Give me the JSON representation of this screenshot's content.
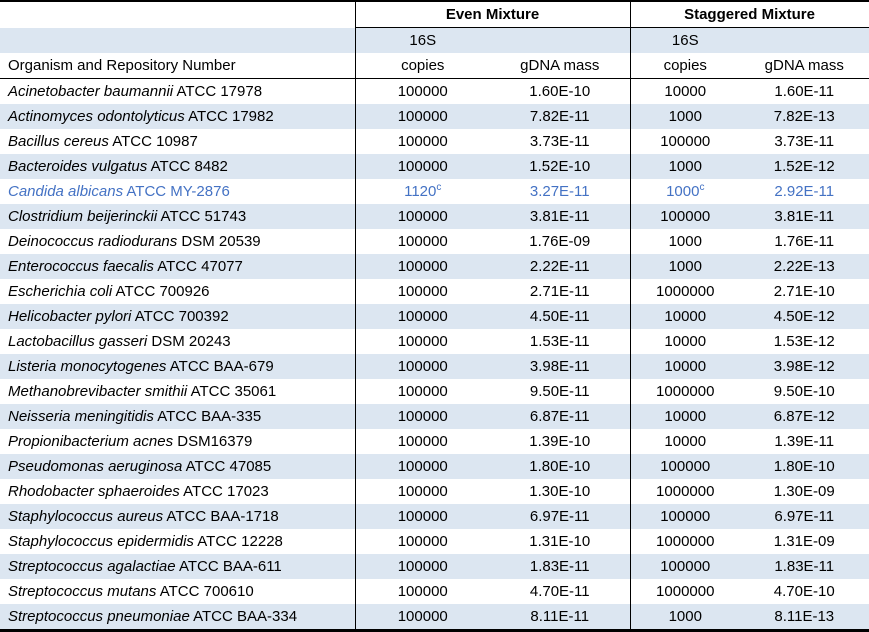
{
  "table": {
    "group_headers": {
      "even": "Even Mixture",
      "staggered": "Staggered Mixture"
    },
    "col_headers": {
      "organism": "Organism and Repository Number",
      "line1": "16S",
      "copies": "copies",
      "gdna": "gDNA mass"
    },
    "colors": {
      "band": "#dce6f1",
      "highlight_text": "#4472c4",
      "border": "#000000"
    },
    "rows": [
      {
        "organism": "Acinetobacter baumannii",
        "repository": "ATCC 17978",
        "even_copies": "100000",
        "even_gdna": "1.60E-10",
        "stag_copies": "10000",
        "stag_gdna": "1.60E-11"
      },
      {
        "organism": "Actinomyces odontolyticus",
        "repository": "ATCC 17982",
        "even_copies": "100000",
        "even_gdna": "7.82E-11",
        "stag_copies": "1000",
        "stag_gdna": "7.82E-13"
      },
      {
        "organism": "Bacillus cereus",
        "repository": "ATCC 10987",
        "even_copies": "100000",
        "even_gdna": "3.73E-11",
        "stag_copies": "100000",
        "stag_gdna": "3.73E-11"
      },
      {
        "organism": "Bacteroides vulgatus",
        "repository": "ATCC 8482",
        "even_copies": "100000",
        "even_gdna": "1.52E-10",
        "stag_copies": "1000",
        "stag_gdna": "1.52E-12"
      },
      {
        "organism": "Candida albicans",
        "repository": "ATCC MY-2876",
        "even_copies": "1120",
        "even_copies_sup": "c",
        "even_gdna": "3.27E-11",
        "stag_copies": "1000",
        "stag_copies_sup": "c",
        "stag_gdna": "2.92E-11",
        "highlight": true
      },
      {
        "organism": "Clostridium beijerinckii",
        "repository": "ATCC 51743",
        "even_copies": "100000",
        "even_gdna": "3.81E-11",
        "stag_copies": "100000",
        "stag_gdna": "3.81E-11"
      },
      {
        "organism": "Deinococcus radiodurans",
        "repository": "DSM 20539",
        "even_copies": "100000",
        "even_gdna": "1.76E-09",
        "stag_copies": "1000",
        "stag_gdna": "1.76E-11"
      },
      {
        "organism": "Enterococcus faecalis",
        "repository": "ATCC 47077",
        "even_copies": "100000",
        "even_gdna": "2.22E-11",
        "stag_copies": "1000",
        "stag_gdna": "2.22E-13"
      },
      {
        "organism": "Escherichia coli",
        "repository": "ATCC 700926",
        "even_copies": "100000",
        "even_gdna": "2.71E-11",
        "stag_copies": "1000000",
        "stag_gdna": "2.71E-10"
      },
      {
        "organism": "Helicobacter pylori",
        "repository": "ATCC 700392",
        "even_copies": "100000",
        "even_gdna": "4.50E-11",
        "stag_copies": "10000",
        "stag_gdna": "4.50E-12"
      },
      {
        "organism": "Lactobacillus gasseri",
        "repository": "DSM 20243",
        "even_copies": "100000",
        "even_gdna": "1.53E-11",
        "stag_copies": "10000",
        "stag_gdna": "1.53E-12"
      },
      {
        "organism": "Listeria monocytogenes",
        "repository": "ATCC BAA-679",
        "even_copies": "100000",
        "even_gdna": "3.98E-11",
        "stag_copies": "10000",
        "stag_gdna": "3.98E-12"
      },
      {
        "organism": "Methanobrevibacter smithii",
        "repository": "ATCC 35061",
        "even_copies": "100000",
        "even_gdna": "9.50E-11",
        "stag_copies": "1000000",
        "stag_gdna": "9.50E-10"
      },
      {
        "organism": "Neisseria meningitidis",
        "repository": "ATCC BAA-335",
        "even_copies": "100000",
        "even_gdna": "6.87E-11",
        "stag_copies": "10000",
        "stag_gdna": "6.87E-12"
      },
      {
        "organism": "Propionibacterium acnes",
        "repository": "DSM16379",
        "even_copies": "100000",
        "even_gdna": "1.39E-10",
        "stag_copies": "10000",
        "stag_gdna": "1.39E-11"
      },
      {
        "organism": "Pseudomonas aeruginosa",
        "repository": "ATCC 47085",
        "even_copies": "100000",
        "even_gdna": "1.80E-10",
        "stag_copies": "100000",
        "stag_gdna": "1.80E-10"
      },
      {
        "organism": "Rhodobacter sphaeroides",
        "repository": "ATCC 17023",
        "even_copies": "100000",
        "even_gdna": "1.30E-10",
        "stag_copies": "1000000",
        "stag_gdna": "1.30E-09"
      },
      {
        "organism": "Staphylococcus aureus",
        "repository": "ATCC BAA-1718",
        "even_copies": "100000",
        "even_gdna": "6.97E-11",
        "stag_copies": "100000",
        "stag_gdna": "6.97E-11"
      },
      {
        "organism": "Staphylococcus epidermidis",
        "repository": "ATCC 12228",
        "even_copies": "100000",
        "even_gdna": "1.31E-10",
        "stag_copies": "1000000",
        "stag_gdna": "1.31E-09"
      },
      {
        "organism": "Streptococcus agalactiae",
        "repository": "ATCC BAA-611",
        "even_copies": "100000",
        "even_gdna": "1.83E-11",
        "stag_copies": "100000",
        "stag_gdna": "1.83E-11"
      },
      {
        "organism": "Streptococcus mutans",
        "repository": "ATCC 700610",
        "even_copies": "100000",
        "even_gdna": "4.70E-11",
        "stag_copies": "1000000",
        "stag_gdna": "4.70E-10"
      },
      {
        "organism": "Streptococcus pneumoniae",
        "repository": "ATCC BAA-334",
        "even_copies": "100000",
        "even_gdna": "8.11E-11",
        "stag_copies": "1000",
        "stag_gdna": "8.11E-13"
      }
    ]
  }
}
